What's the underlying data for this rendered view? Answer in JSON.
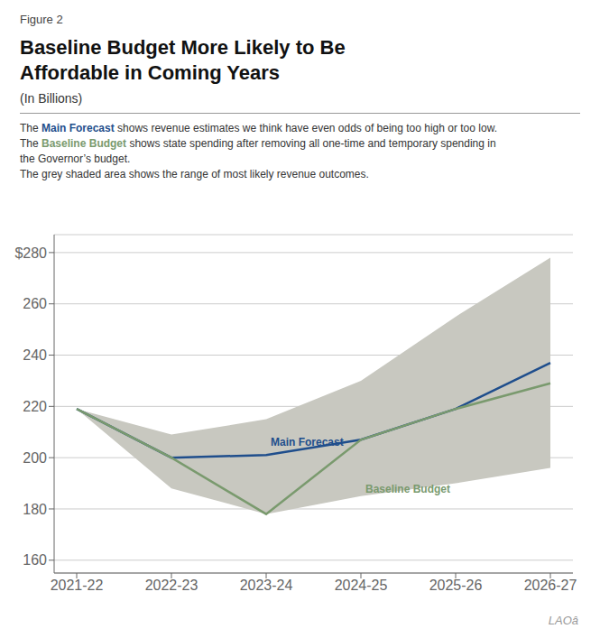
{
  "chart_data": {
    "type": "line",
    "figure_label": "Figure 2",
    "title": [
      "Baseline Budget More Likely to Be",
      "Affordable in Coming Years"
    ],
    "subtitle": "(In Billions)",
    "description": [
      [
        {
          "text": "The "
        },
        {
          "text": "Main Forecast",
          "color": "#1f4e8c"
        },
        {
          "text": " shows revenue estimates we think have even odds of being too high or too low."
        }
      ],
      [
        {
          "text": "The "
        },
        {
          "text": "Baseline Budget",
          "color": "#7a9a6e"
        },
        {
          "text": " shows state spending after removing all one-time and temporary spending in"
        }
      ],
      [
        {
          "text": "the Governor’s budget."
        }
      ],
      [
        {
          "text": "The grey shaded area shows the range of most likely revenue outcomes."
        }
      ]
    ],
    "categories": [
      "2021-22",
      "2022-23",
      "2023-24",
      "2024-25",
      "2025-26",
      "2026-27"
    ],
    "series": [
      {
        "name": "Main Forecast",
        "color": "#1f4e8c",
        "values": [
          219,
          200,
          201,
          207,
          219,
          237
        ]
      },
      {
        "name": "Baseline Budget",
        "color": "#7a9a6e",
        "values": [
          219,
          200,
          178,
          207,
          219,
          229
        ]
      }
    ],
    "band": {
      "upper": [
        219,
        209,
        215,
        230,
        255,
        278
      ],
      "lower": [
        219,
        188,
        178,
        185,
        190,
        196
      ],
      "color": "#c8c8c0"
    },
    "annotations": [
      {
        "text": "Main Forecast",
        "x": "2023-24",
        "y": 206,
        "color": "#1f4e8c"
      },
      {
        "text": "Baseline Budget",
        "x": "2024-25",
        "y": 188,
        "color": "#7a9a6e"
      }
    ],
    "ylim": [
      155,
      287
    ],
    "yticks": [
      160,
      180,
      200,
      220,
      240,
      260,
      {
        "value": 280,
        "label": "$280"
      }
    ],
    "grid": true,
    "credit": "LAOâ"
  }
}
